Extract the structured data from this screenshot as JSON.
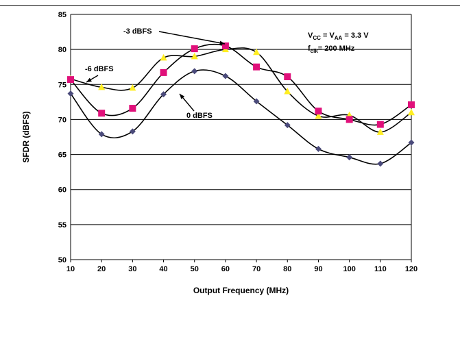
{
  "chart_data": {
    "type": "line",
    "xlabel": "Output Frequency (MHz)",
    "ylabel": "SFDR (dBFS)",
    "xlim": [
      10,
      120
    ],
    "ylim": [
      50,
      85
    ],
    "x_ticks": [
      10,
      20,
      30,
      40,
      50,
      60,
      70,
      80,
      90,
      100,
      110,
      120
    ],
    "y_ticks": [
      50,
      55,
      60,
      65,
      70,
      75,
      80,
      85
    ],
    "grid": "horizontal",
    "x": [
      10,
      20,
      30,
      40,
      50,
      60,
      70,
      80,
      90,
      100,
      110,
      120
    ],
    "series": [
      {
        "name": "0 dBFS",
        "marker": "diamond",
        "color": "#4a4a7a",
        "values": [
          73.7,
          67.9,
          68.3,
          73.6,
          76.9,
          76.2,
          72.6,
          69.2,
          65.8,
          64.6,
          63.7,
          66.7
        ]
      },
      {
        "name": "-3 dBFS",
        "marker": "square",
        "color": "#e0107a",
        "values": [
          75.7,
          70.9,
          71.6,
          76.7,
          80.1,
          80.5,
          77.5,
          76.1,
          71.2,
          70.0,
          69.3,
          72.1
        ]
      },
      {
        "name": "-6 dBFS",
        "marker": "triangle",
        "color": "#ffee22",
        "values": [
          75.8,
          74.6,
          74.5,
          78.8,
          79.0,
          80.0,
          79.6,
          74.0,
          70.5,
          70.6,
          68.2,
          71.0
        ]
      }
    ],
    "annotations": [
      {
        "id": "label-3",
        "text": "-3 dBFS",
        "points_to_series": "-3 dBFS"
      },
      {
        "id": "label-6",
        "text": "-6 dBFS",
        "points_to_series": "-6 dBFS"
      },
      {
        "id": "label-0",
        "text": "0 dBFS",
        "points_to_series": "0 dBFS"
      }
    ],
    "conditions": {
      "line1": {
        "v1": "V",
        "sub1": "CC",
        "eq": " = V",
        "sub2": "AA",
        "rest": " = 3.3 V"
      },
      "line2": {
        "f": "f",
        "sub": "clk",
        "rest": "= 200 MHz"
      }
    }
  }
}
